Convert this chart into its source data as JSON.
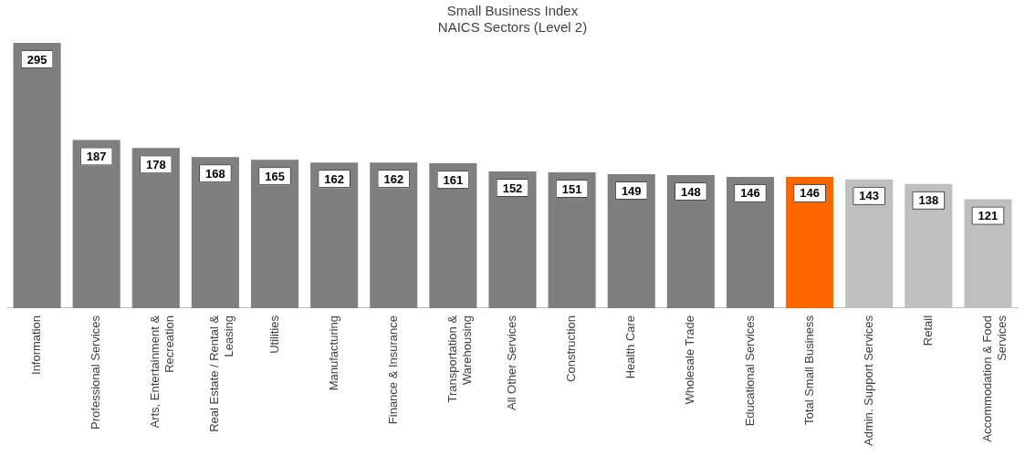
{
  "chart_data": {
    "type": "bar",
    "title": "Small Business Index",
    "subtitle": "NAICS Sectors (Level 2)",
    "categories": [
      "Information",
      "Professional Services",
      "Arts, Entertainment & Recreation",
      "Real Estate / Rental & Leasing",
      "Utilities",
      "Manufacturing",
      "Finance & Insurance",
      "Transportation & Warehousing",
      "All Other Services",
      "Construction",
      "Health Care",
      "Wholesale Trade",
      "Educational Services",
      "Total Small Business",
      "Admin. Support Services",
      "Retail",
      "Accommodation & Food Services"
    ],
    "values": [
      295,
      187,
      178,
      168,
      165,
      162,
      162,
      161,
      152,
      151,
      149,
      148,
      146,
      146,
      143,
      138,
      121
    ],
    "colors": [
      "#7f7f7f",
      "#7f7f7f",
      "#7f7f7f",
      "#7f7f7f",
      "#7f7f7f",
      "#7f7f7f",
      "#7f7f7f",
      "#7f7f7f",
      "#7f7f7f",
      "#7f7f7f",
      "#7f7f7f",
      "#7f7f7f",
      "#7f7f7f",
      "#ff6600",
      "#bfbfbf",
      "#bfbfbf",
      "#bfbfbf"
    ],
    "data_labels": true,
    "grid": false,
    "legend": false
  }
}
